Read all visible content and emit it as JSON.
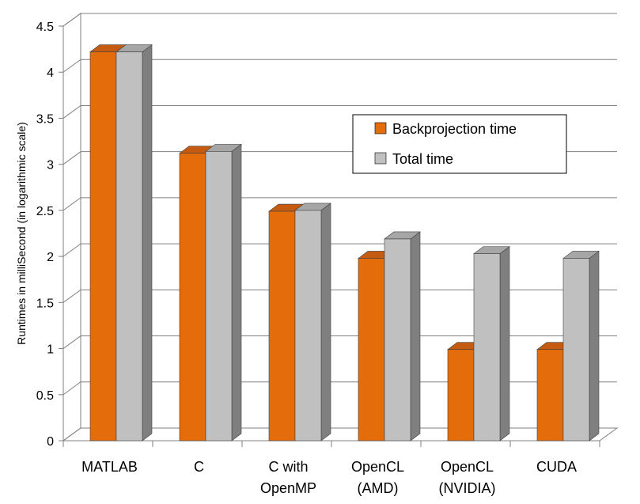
{
  "chart_data": {
    "type": "bar",
    "title": "",
    "xlabel": "",
    "ylabel": "Runtimes in milliSecond (in logarithmic scale)",
    "ylim": [
      0,
      4.5
    ],
    "yticks": [
      "0",
      "0.5",
      "1",
      "1.5",
      "2",
      "2.5",
      "3",
      "3.5",
      "4",
      "4.5"
    ],
    "categories": [
      [
        "MATLAB"
      ],
      [
        "C"
      ],
      [
        "C with",
        "OpenMP"
      ],
      [
        "OpenCL",
        "(AMD)"
      ],
      [
        "OpenCL",
        "(NVIDIA)"
      ],
      [
        "CUDA"
      ]
    ],
    "series": [
      {
        "name": "Backprojection time",
        "color": "#E46C0A",
        "top_color": "#C55A11",
        "side_color": "#7F3A05",
        "values": [
          4.22,
          3.12,
          2.49,
          1.98,
          0.99,
          0.99
        ]
      },
      {
        "name": "Total time",
        "color": "#C0C0C0",
        "top_color": "#A6A6A6",
        "side_color": "#7F7F7F",
        "values": [
          4.22,
          3.14,
          2.5,
          2.19,
          2.03,
          1.98
        ]
      }
    ],
    "legend_position": "right"
  }
}
